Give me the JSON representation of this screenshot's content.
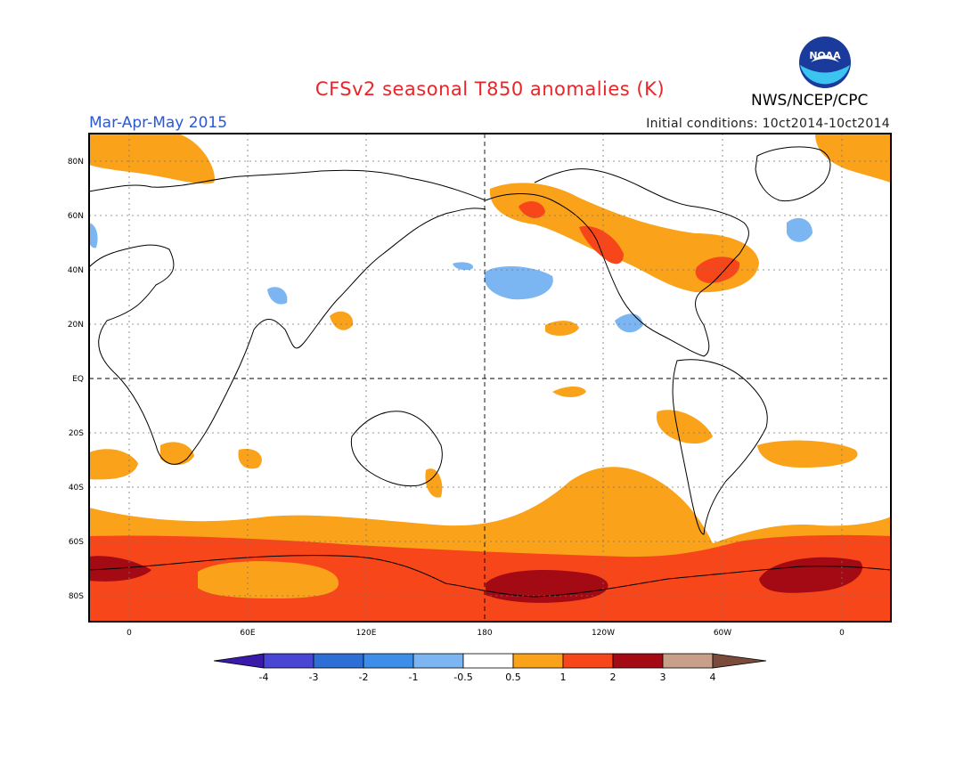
{
  "header": {
    "title": "CFSv2 seasonal T850 anomalies (K)",
    "season": "Mar-Apr-May 2015",
    "initial_conditions": "Initial conditions: 10ct2014-10ct2014",
    "agency": "NWS/NCEP/CPC",
    "logo_text": "NOAA"
  },
  "axes": {
    "lat_labels": [
      "80N",
      "60N",
      "40N",
      "20N",
      "EQ",
      "20S",
      "40S",
      "60S",
      "80S"
    ],
    "lon_labels": [
      "0",
      "60E",
      "120E",
      "180",
      "120W",
      "60W",
      "0"
    ]
  },
  "colorbar": {
    "labels": [
      "-4",
      "-3",
      "-2",
      "-1",
      "-0.5",
      "0.5",
      "1",
      "2",
      "3",
      "4"
    ],
    "colors": [
      "#3a1aa8",
      "#4a46d4",
      "#2e6fd6",
      "#3d8ee8",
      "#7bb6f2",
      "#ffffff",
      "#f9a21a",
      "#f8461b",
      "#a30a14",
      "#c8a08a",
      "#7a4a3a"
    ]
  },
  "colors": {
    "title": "#e8262a",
    "season": "#2b58d6",
    "warm1": "#f9a21a",
    "warm2": "#f8461b",
    "warm3": "#a30a14",
    "cool1": "#7bb6f2",
    "cool2": "#3d8ee8"
  }
}
